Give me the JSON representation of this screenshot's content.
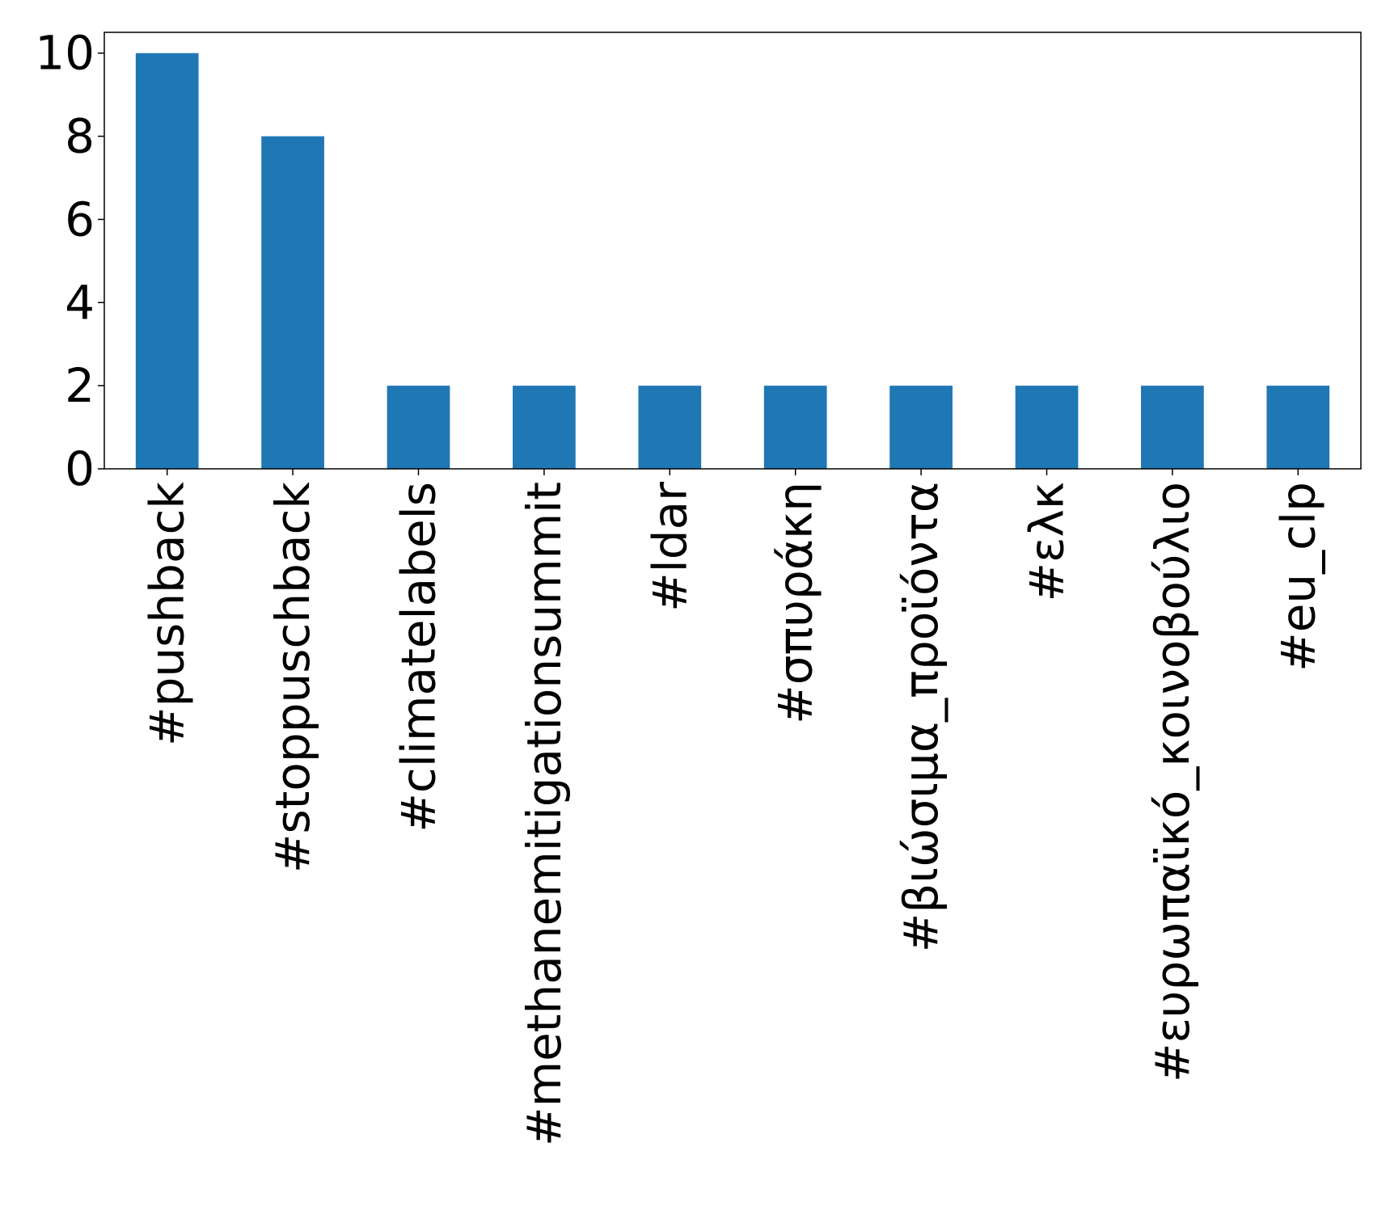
{
  "chart_data": {
    "type": "bar",
    "title": "",
    "xlabel": "",
    "ylabel": "",
    "categories": [
      "#pushback",
      "#stoppuschback",
      "#climatelabels",
      "#methanemitigationsummit",
      "#ldar",
      "#σπυράκη",
      "#βιώσιμα_προϊόντα",
      "#ελκ",
      "#ευρωπαϊκό_κοινοβούλιο",
      "#eu_clp"
    ],
    "values": [
      10,
      8,
      2,
      2,
      2,
      2,
      2,
      2,
      2,
      2
    ],
    "ylim": [
      0,
      10.5
    ],
    "yticks": [
      0,
      2,
      4,
      6,
      8,
      10
    ],
    "grid": false,
    "legend": "none",
    "bar_color": "#1f77b4"
  }
}
